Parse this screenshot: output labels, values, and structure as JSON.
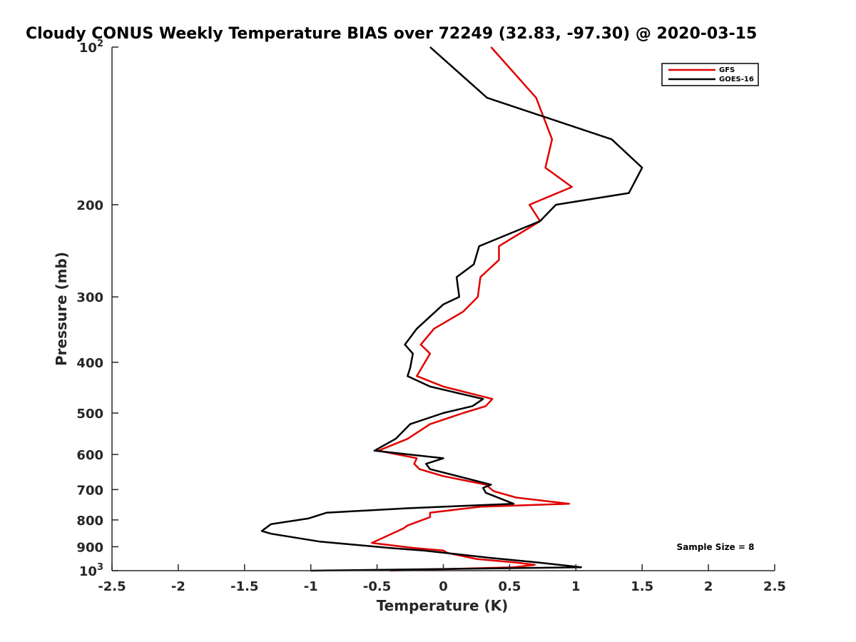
{
  "chart_data": {
    "type": "line",
    "title": "Cloudy CONUS Weekly Temperature BIAS over 72249 (32.83, -97.30) @ 2020-03-15",
    "xlabel": "Temperature (K)",
    "ylabel": "Pressure (mb)",
    "xlim": [
      -2.5,
      2.5
    ],
    "ylim": [
      1000,
      100
    ],
    "y_scale": "log",
    "x_ticks": [
      -2.5,
      -2,
      -1.5,
      -1,
      -0.5,
      0,
      0.5,
      1,
      1.5,
      2,
      2.5
    ],
    "x_tick_labels": [
      "-2.5",
      "-2",
      "-1.5",
      "-1",
      "-0.5",
      "0",
      "0.5",
      "1",
      "1.5",
      "2",
      "2.5"
    ],
    "y_ticks": [
      {
        "value": 100,
        "base": "10",
        "exp": "2"
      },
      {
        "value": 200,
        "label": "200"
      },
      {
        "value": 300,
        "label": "300"
      },
      {
        "value": 400,
        "label": "400"
      },
      {
        "value": 500,
        "label": "500"
      },
      {
        "value": 600,
        "label": "600"
      },
      {
        "value": 700,
        "label": "700"
      },
      {
        "value": 800,
        "label": "800"
      },
      {
        "value": 900,
        "label": "900"
      },
      {
        "value": 1000,
        "base": "10",
        "exp": "3"
      }
    ],
    "grid": false,
    "legend_position": "top-right",
    "annotation": "Sample Size = 8",
    "series": [
      {
        "name": "GFS",
        "color": "#e00000",
        "points": [
          [
            0.36,
            100
          ],
          [
            0.7,
            125
          ],
          [
            0.82,
            150
          ],
          [
            0.77,
            170
          ],
          [
            0.97,
            185
          ],
          [
            0.65,
            200
          ],
          [
            0.73,
            215
          ],
          [
            0.42,
            240
          ],
          [
            0.42,
            255
          ],
          [
            0.28,
            275
          ],
          [
            0.26,
            300
          ],
          [
            0.15,
            320
          ],
          [
            -0.07,
            345
          ],
          [
            -0.17,
            370
          ],
          [
            -0.1,
            385
          ],
          [
            -0.2,
            425
          ],
          [
            0.0,
            445
          ],
          [
            0.37,
            470
          ],
          [
            0.32,
            485
          ],
          [
            0.15,
            500
          ],
          [
            -0.1,
            525
          ],
          [
            -0.27,
            560
          ],
          [
            -0.49,
            590
          ],
          [
            -0.2,
            610
          ],
          [
            -0.22,
            625
          ],
          [
            -0.18,
            640
          ],
          [
            0.0,
            660
          ],
          [
            0.32,
            685
          ],
          [
            0.38,
            705
          ],
          [
            0.55,
            725
          ],
          [
            0.95,
            745
          ],
          [
            0.28,
            755
          ],
          [
            -0.1,
            775
          ],
          [
            -0.1,
            790
          ],
          [
            -0.27,
            820
          ],
          [
            -0.3,
            830
          ],
          [
            -0.54,
            885
          ],
          [
            -0.22,
            905
          ],
          [
            0.0,
            915
          ],
          [
            0.03,
            925
          ],
          [
            0.25,
            950
          ],
          [
            0.55,
            965
          ],
          [
            0.69,
            975
          ],
          [
            0.53,
            985
          ],
          [
            -0.4,
            1000
          ]
        ]
      },
      {
        "name": "GOES-16",
        "color": "#000000",
        "points": [
          [
            -0.1,
            100
          ],
          [
            0.33,
            125
          ],
          [
            1.27,
            150
          ],
          [
            1.5,
            170
          ],
          [
            1.4,
            190
          ],
          [
            0.85,
            200
          ],
          [
            0.73,
            215
          ],
          [
            0.27,
            240
          ],
          [
            0.23,
            260
          ],
          [
            0.1,
            275
          ],
          [
            0.12,
            300
          ],
          [
            0.0,
            310
          ],
          [
            -0.2,
            345
          ],
          [
            -0.29,
            370
          ],
          [
            -0.23,
            385
          ],
          [
            -0.25,
            410
          ],
          [
            -0.27,
            425
          ],
          [
            -0.1,
            445
          ],
          [
            0.3,
            470
          ],
          [
            0.22,
            485
          ],
          [
            0.0,
            500
          ],
          [
            -0.25,
            525
          ],
          [
            -0.36,
            560
          ],
          [
            -0.52,
            590
          ],
          [
            0.0,
            610
          ],
          [
            -0.13,
            625
          ],
          [
            -0.1,
            640
          ],
          [
            0.36,
            685
          ],
          [
            0.3,
            695
          ],
          [
            0.32,
            710
          ],
          [
            0.53,
            745
          ],
          [
            -0.27,
            760
          ],
          [
            -0.88,
            775
          ],
          [
            -1.02,
            795
          ],
          [
            -1.3,
            815
          ],
          [
            -1.37,
            840
          ],
          [
            -1.3,
            850
          ],
          [
            -0.93,
            880
          ],
          [
            -0.4,
            905
          ],
          [
            -0.15,
            915
          ],
          [
            0.35,
            945
          ],
          [
            0.72,
            965
          ],
          [
            1.04,
            985
          ],
          [
            0.4,
            990
          ],
          [
            -1.0,
            1000
          ]
        ]
      }
    ]
  }
}
